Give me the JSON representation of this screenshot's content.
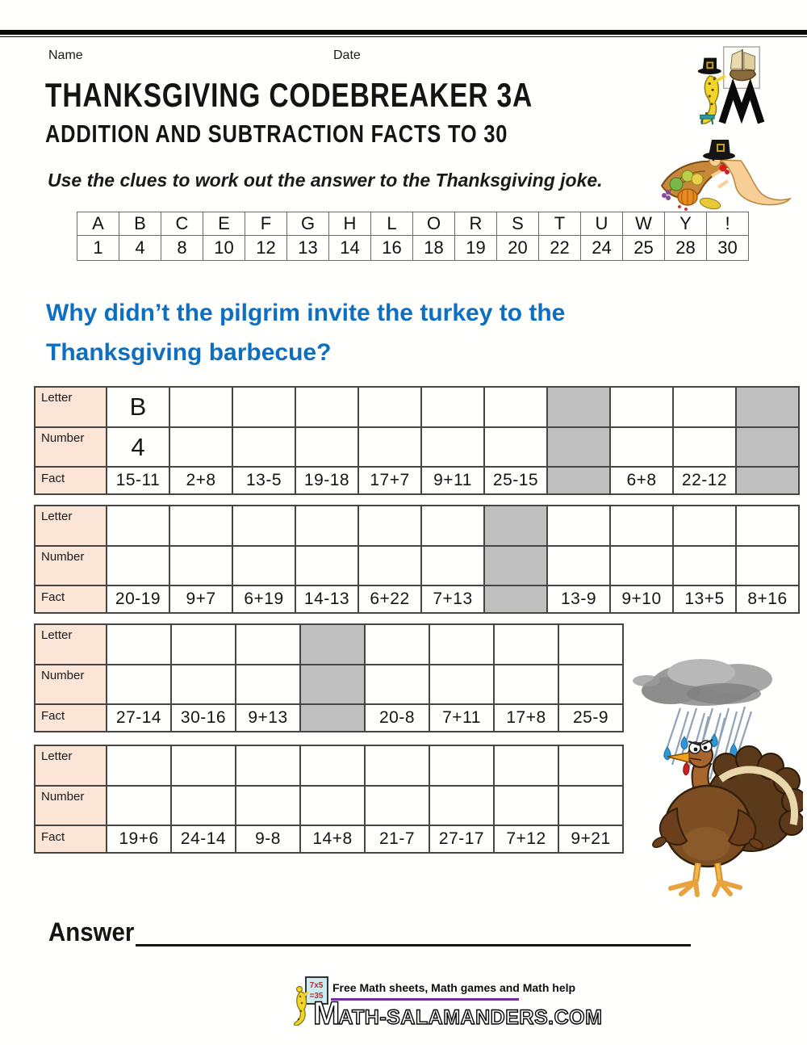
{
  "page": {
    "name_label": "Name",
    "date_label": "Date",
    "title": "THANKSGIVING CODEBREAKER 3A",
    "subtitle": "ADDITION AND SUBTRACTION FACTS TO 30",
    "instruction": "Use the clues to work out the answer to the Thanksgiving joke.",
    "question": "Why didn’t the pilgrim invite the turkey to the Thanksgiving barbecue?",
    "answer_label": "Answer"
  },
  "code_table": {
    "letters": [
      "A",
      "B",
      "C",
      "E",
      "F",
      "G",
      "H",
      "L",
      "O",
      "R",
      "S",
      "T",
      "U",
      "W",
      "Y",
      "!"
    ],
    "numbers": [
      "1",
      "4",
      "8",
      "10",
      "12",
      "13",
      "14",
      "16",
      "18",
      "19",
      "20",
      "22",
      "24",
      "25",
      "28",
      "30"
    ]
  },
  "grids": {
    "row_labels": {
      "letter": "Letter",
      "number": "Number",
      "fact": "Fact"
    },
    "tables": [
      {
        "cells": [
          {
            "letter": "B",
            "number": "4",
            "fact": "15-11"
          },
          {
            "fact": "2+8"
          },
          {
            "fact": "13-5"
          },
          {
            "fact": "19-18"
          },
          {
            "fact": "17+7"
          },
          {
            "fact": "9+11"
          },
          {
            "fact": "25-15"
          },
          {
            "gray": true
          },
          {
            "fact": "6+8"
          },
          {
            "fact": "22-12"
          },
          {
            "gray": true
          }
        ]
      },
      {
        "cells": [
          {
            "fact": "20-19"
          },
          {
            "fact": "9+7"
          },
          {
            "fact": "6+19"
          },
          {
            "fact": "14-13"
          },
          {
            "fact": "6+22"
          },
          {
            "fact": "7+13"
          },
          {
            "gray": true
          },
          {
            "fact": "13-9"
          },
          {
            "fact": "9+10"
          },
          {
            "fact": "13+5"
          },
          {
            "fact": "8+16"
          }
        ]
      },
      {
        "cells": [
          {
            "fact": "27-14"
          },
          {
            "fact": "30-16"
          },
          {
            "fact": "9+13"
          },
          {
            "gray": true
          },
          {
            "fact": "20-8"
          },
          {
            "fact": "7+11"
          },
          {
            "fact": "17+8"
          },
          {
            "fact": "25-9"
          }
        ]
      },
      {
        "cells": [
          {
            "fact": "19+6"
          },
          {
            "fact": "24-14"
          },
          {
            "fact": "9-8"
          },
          {
            "fact": "14+8"
          },
          {
            "fact": "21-7"
          },
          {
            "fact": "27-17"
          },
          {
            "fact": "7+12"
          },
          {
            "fact": "9+21"
          }
        ]
      }
    ]
  },
  "footer": {
    "tagline": "Free Math sheets, Math games and Math help",
    "brand_m": "M",
    "brand_rest": "ATH-SALAMANDERS.COM",
    "board_line1": "7x5",
    "board_line2": "=35"
  },
  "colors": {
    "accent_blue": "#0e6fc1",
    "header_peach": "#fbe5d6",
    "gray_cell": "#bfbfbf",
    "purple_rule": "#7030a0"
  }
}
